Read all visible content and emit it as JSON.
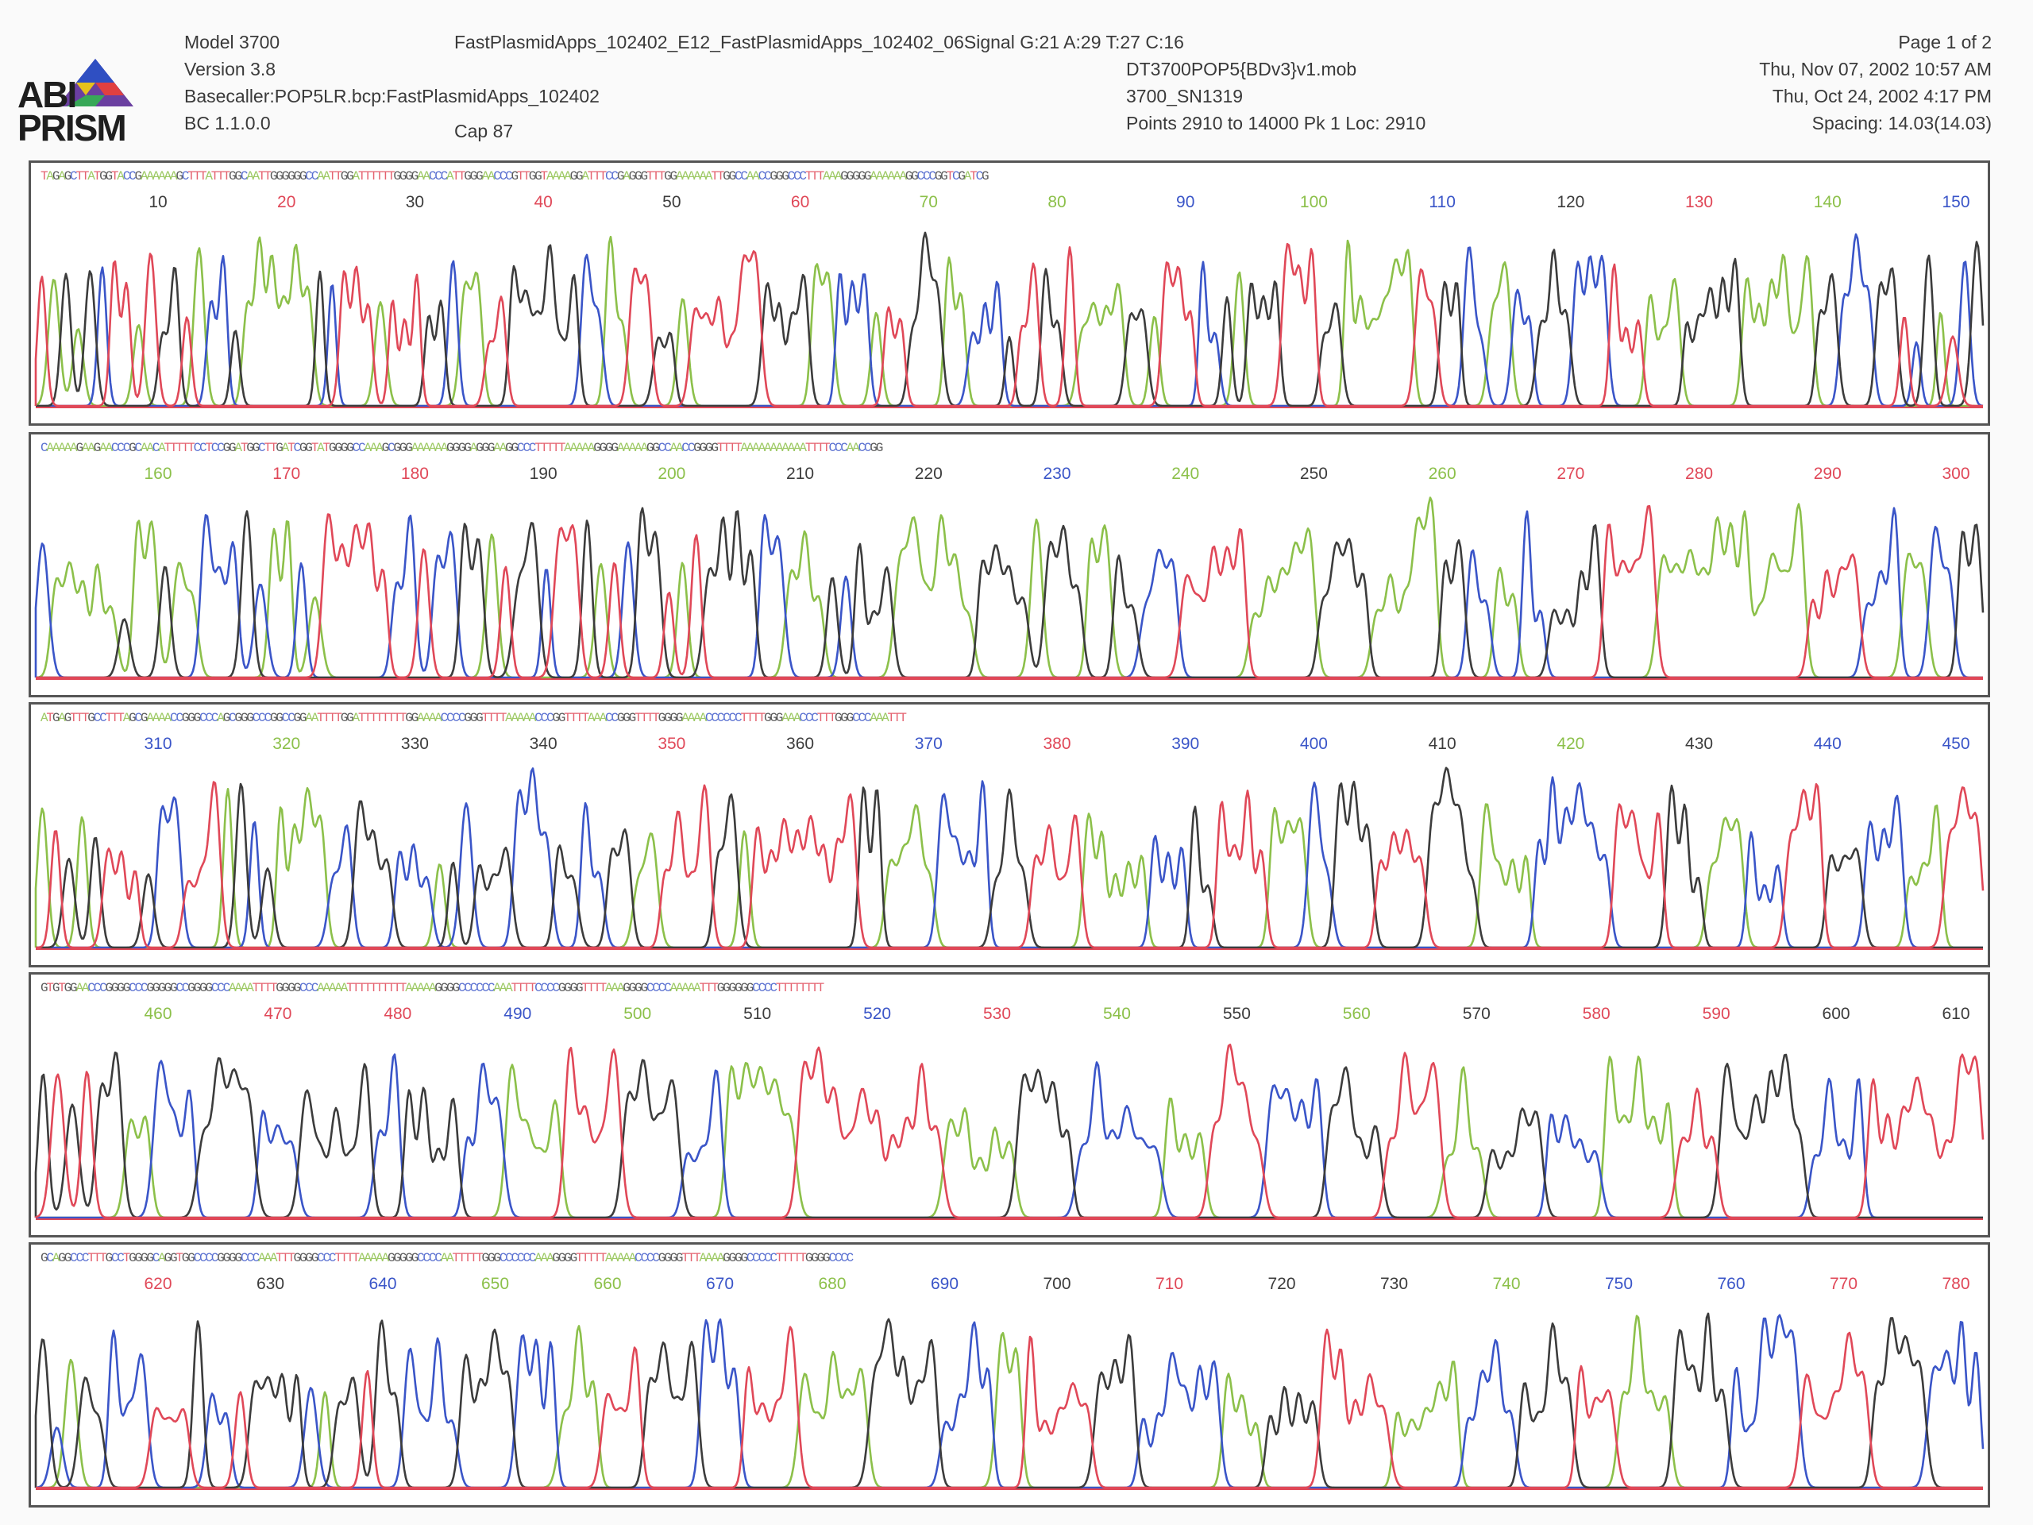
{
  "header": {
    "logo_line1": "ABI",
    "logo_line2": "PRISM",
    "model": "Model 3700",
    "version": "Version 3.8",
    "basecaller": "Basecaller:POP5LR.bcp:FastPlasmidApps_102402",
    "bc": "BC 1.1.0.0",
    "sample_name": "FastPlasmidApps_102402_E12_FastPlasmidApps_102402_06Signal G:21 A:29 T:27 C:16",
    "mob_file": "DT3700POP5{BDv3}v1.mob",
    "run_id": "3700_SN1319",
    "cap": "Cap 87",
    "points": "Points 2910 to 14000   Pk 1 Loc: 2910",
    "page": "Page 1 of 2",
    "date1": "Thu, Nov 07, 2002  10:57 AM",
    "date2": "Thu, Oct 24, 2002  4:17 PM",
    "spacing": "Spacing: 14.03(14.03)"
  },
  "colors": {
    "A": "#8cc04a",
    "C": "#3a55c8",
    "G": "#3c3c3c",
    "T": "#e04858"
  },
  "chart_data": {
    "type": "line",
    "title": "",
    "xlabel": "",
    "ylabel": "",
    "panels": [
      {
        "sequence": "TAGAGCTTATGGTACCGAAAAAAGCTTTATTTGGCAATTGGGGGGCCAATTGGATTTTTTGGGGAACCCATTGGGAACCCGTTGGTAAAAGGATTTCCGAGGGTTTGGAAAAAATTGGCCAACCGGGCCCTTTAAAGGGGGAAAAAAGGCCCGGTCGATCG",
        "ticks": [
          10,
          20,
          30,
          40,
          50,
          60,
          70,
          80,
          90,
          100,
          110,
          120,
          130,
          140,
          150
        ],
        "tick_colors": [
          "G",
          "T",
          "G",
          "T",
          "G",
          "T",
          "A",
          "A",
          "C",
          "A",
          "C",
          "G",
          "T",
          "A",
          "C"
        ]
      },
      {
        "sequence": "CAAAAAGAAGAACCCGCAACATTTTTCCTCCGGATGGCTTGATCGGTATGGGGCCAAAGCGGGAAAAAAGGGGAGGGAAGGCCCTTTTTAAAAAGGGGAAAAAGGCCAACCGGGGTTTTAAAAAAAAAAATTTTCCCAACCGG",
        "ticks": [
          160,
          170,
          180,
          190,
          200,
          210,
          220,
          230,
          240,
          250,
          260,
          270,
          280,
          290,
          300
        ],
        "tick_colors": [
          "A",
          "T",
          "T",
          "G",
          "A",
          "G",
          "G",
          "C",
          "A",
          "G",
          "A",
          "T",
          "T",
          "T",
          "T"
        ]
      },
      {
        "sequence": "ATGAGTTTGCCTTTAGCGAAAACCGGGCCCAGCGGGCCCGGCCGGAATTTTGGATTTTTTTTGGAAAACCCCGGGTTTTAAAAACCCGGTTTTAAACCGGGTTTTGGGGAAAACCCCCCTTTTGGGAAACCCTTTGGGCCCAAATTT",
        "ticks": [
          310,
          320,
          330,
          340,
          350,
          360,
          370,
          380,
          390,
          400,
          410,
          420,
          430,
          440,
          450
        ],
        "tick_colors": [
          "C",
          "A",
          "G",
          "G",
          "T",
          "G",
          "C",
          "T",
          "C",
          "C",
          "G",
          "A",
          "G",
          "C",
          "C"
        ]
      },
      {
        "sequence": "GTGTGGAACCCGGGGCCCGGGGGCCGGGGCCCAAAATTTTGGGGCCCAAAAATTTTTTTTTTAAAAAGGGGCCCCCCAAATTTTCCCCGGGGTTTTAAAGGGGCCCCAAAAATTTGGGGGGCCCCTTTTTTTT",
        "ticks": [
          460,
          470,
          480,
          490,
          500,
          510,
          520,
          530,
          540,
          550,
          560,
          570,
          580,
          590,
          600,
          610
        ],
        "tick_colors": [
          "A",
          "T",
          "T",
          "C",
          "A",
          "G",
          "C",
          "T",
          "A",
          "G",
          "A",
          "G",
          "T",
          "T",
          "G",
          "G"
        ]
      },
      {
        "sequence": "GCAGGCCCTTTGCCTGGGGCAGGTGGCCCCGGGGCCCAAATTTGGGGCCCTTTTAAAAAGGGGGCCCCAATTTTTGGGCCCCCCAAAGGGGTTTTTAAAAACCCCGGGGTTTAAAAGGGGCCCCCTTTTTGGGGCCCC",
        "ticks": [
          620,
          630,
          640,
          650,
          660,
          670,
          680,
          690,
          700,
          710,
          720,
          730,
          740,
          750,
          760,
          770,
          780
        ],
        "tick_colors": [
          "T",
          "G",
          "C",
          "A",
          "A",
          "C",
          "A",
          "C",
          "G",
          "T",
          "G",
          "G",
          "A",
          "C",
          "C",
          "T",
          "T"
        ]
      }
    ]
  }
}
